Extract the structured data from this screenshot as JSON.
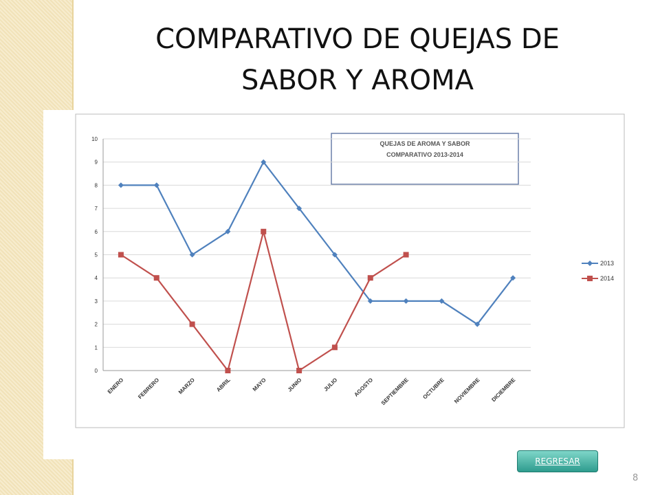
{
  "slide": {
    "title_lines": [
      "COMPARATIVO DE QUEJAS DE",
      "SABOR Y AROMA"
    ],
    "button": "REGRESAR",
    "page_number": "8"
  },
  "chart_data": {
    "type": "line",
    "title": "QUEJAS DE AROMA Y SABOR",
    "subtitle": "COMPARATIVO 2013-2014",
    "categories": [
      "ENERO",
      "FEBRERO",
      "MARZO",
      "ABRIL",
      "MAYO",
      "JUNIO",
      "JULIO",
      "AGOSTO",
      "SEPTIEMBRE",
      "OCTUBRE",
      "NOVIEMBRE",
      "DICIEMBRE"
    ],
    "series": [
      {
        "name": "2013",
        "color": "#4f81bd",
        "marker": "diamond",
        "values": [
          8,
          8,
          5,
          6,
          9,
          7,
          5,
          3,
          3,
          3,
          2,
          4
        ]
      },
      {
        "name": "2014",
        "color": "#c0504d",
        "marker": "square",
        "values": [
          5,
          4,
          2,
          0,
          6,
          0,
          1,
          4,
          5,
          null,
          null,
          null
        ]
      }
    ],
    "ylim": [
      0,
      10
    ],
    "yticks": [
      0,
      1,
      2,
      3,
      4,
      5,
      6,
      7,
      8,
      9,
      10
    ],
    "grid": true,
    "legend": "right"
  }
}
